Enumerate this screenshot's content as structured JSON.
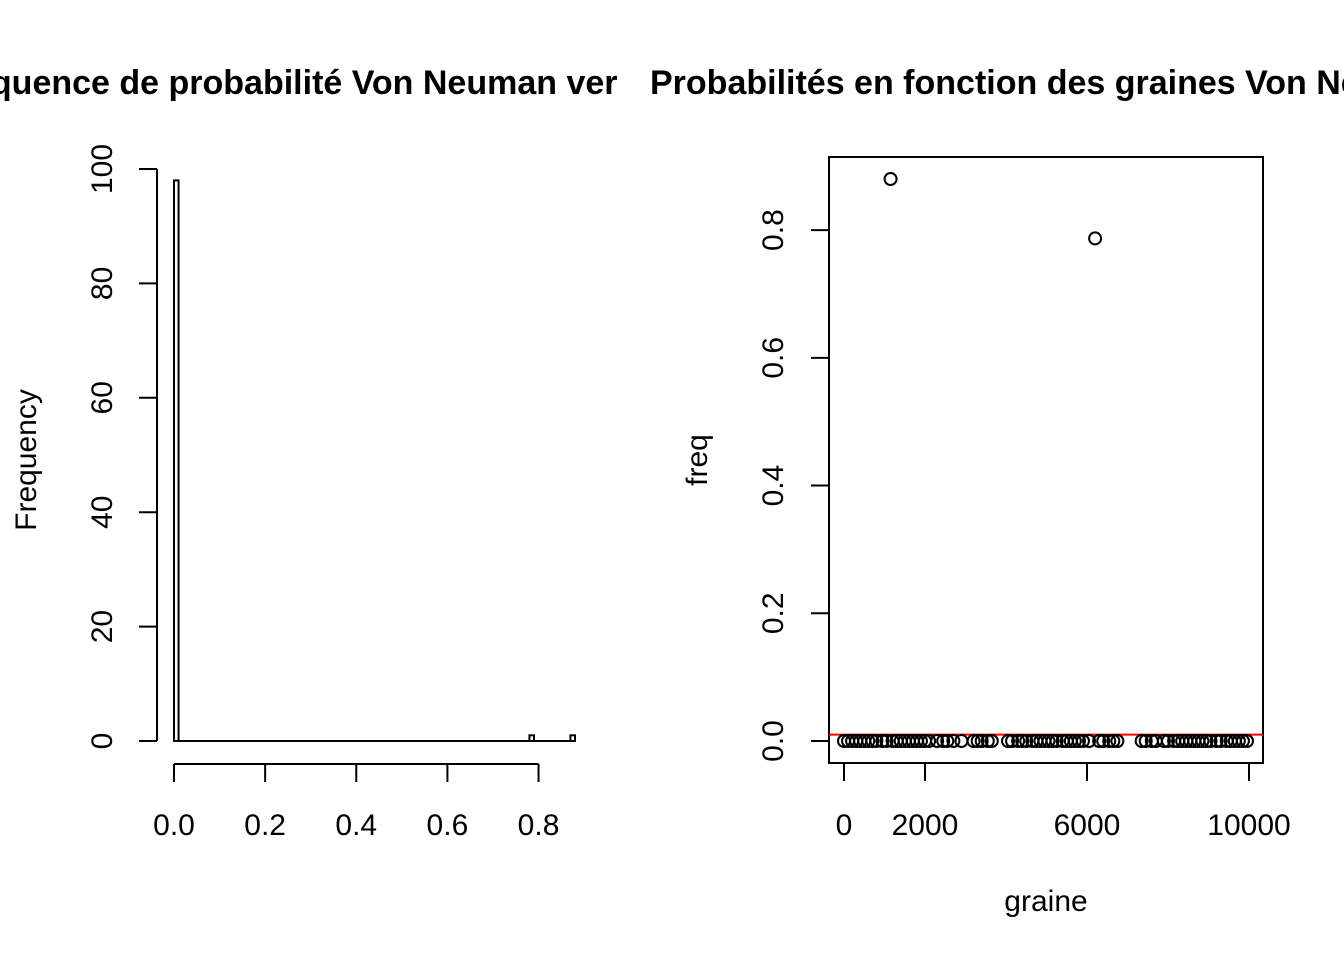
{
  "chart_data": [
    {
      "type": "bar",
      "subtype": "histogram",
      "title": "Fréquence de probabilité Von Neuman ver",
      "xlabel": "",
      "ylabel": "Frequency",
      "xlim": [
        0,
        0.88
      ],
      "ylim": [
        0,
        100
      ],
      "xticks": [
        0.0,
        0.2,
        0.4,
        0.6,
        0.8
      ],
      "xtick_labels": [
        "0.0",
        "0.2",
        "0.4",
        "0.6",
        "0.8"
      ],
      "yticks": [
        0,
        20,
        40,
        60,
        80,
        100
      ],
      "ytick_labels": [
        "0",
        "20",
        "40",
        "60",
        "80",
        "100"
      ],
      "bins": [
        {
          "start": 0.0,
          "end": 0.01,
          "count": 98
        },
        {
          "start": 0.78,
          "end": 0.79,
          "count": 1
        },
        {
          "start": 0.87,
          "end": 0.88,
          "count": 1
        }
      ]
    },
    {
      "type": "scatter",
      "title": "Probabilités en fonction des graines Von Neuman",
      "xlabel": "graine",
      "ylabel": "freq",
      "xlim": [
        0,
        10000
      ],
      "ylim": [
        0,
        0.88
      ],
      "xticks": [
        0,
        2000,
        6000,
        10000
      ],
      "xtick_labels": [
        "0",
        "2000",
        "6000",
        "10000"
      ],
      "yticks": [
        0.0,
        0.2,
        0.4,
        0.6,
        0.8
      ],
      "ytick_labels": [
        "0.0",
        "0.2",
        "0.4",
        "0.6",
        "0.8"
      ],
      "hline": {
        "y": 0.01,
        "color": "#ff0000"
      },
      "points": [
        {
          "x": 1150,
          "y": 0.88
        },
        {
          "x": 6200,
          "y": 0.787
        }
      ],
      "zero_points_x": [
        0,
        100,
        200,
        300,
        400,
        500,
        600,
        700,
        800,
        950,
        1050,
        1200,
        1300,
        1400,
        1500,
        1600,
        1700,
        1800,
        1900,
        2000,
        2100,
        2300,
        2450,
        2550,
        2700,
        2900,
        3200,
        3300,
        3400,
        3550,
        3650,
        4050,
        4150,
        4300,
        4400,
        4500,
        4650,
        4750,
        4850,
        4950,
        5050,
        5150,
        5250,
        5400,
        5500,
        5600,
        5700,
        5800,
        5900,
        6050,
        6300,
        6400,
        6550,
        6650,
        6750,
        7350,
        7450,
        7600,
        7700,
        7900,
        8000,
        8150,
        8250,
        8350,
        8450,
        8550,
        8650,
        8750,
        8850,
        8950,
        9050,
        9200,
        9300,
        9450,
        9550,
        9650,
        9750,
        9850,
        9950
      ]
    }
  ]
}
